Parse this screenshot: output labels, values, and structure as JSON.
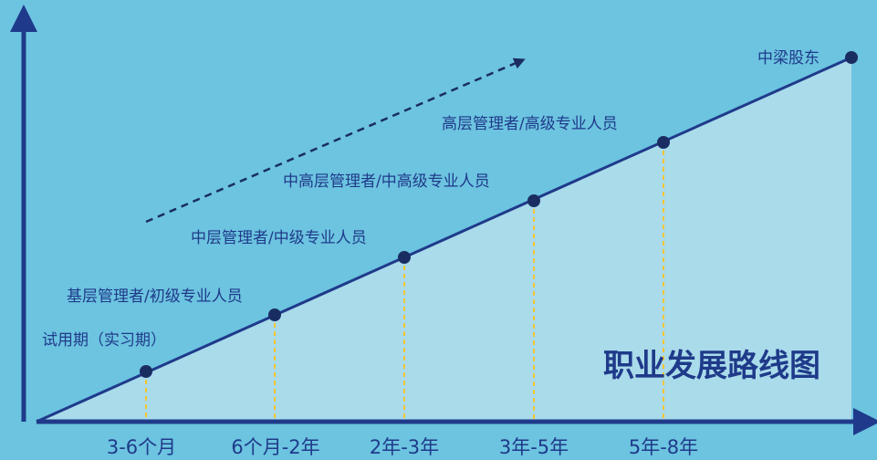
{
  "title": "职业发展路线图",
  "x_labels": [
    "3-6个月",
    "6个月-2年",
    "2年-3年",
    "3年-5年",
    "5年-8年"
  ],
  "stages": [
    {
      "label": "试用期（实习期）",
      "time_index": 0
    },
    {
      "label": "基层管理者/初级专业人员",
      "time_index": 1
    },
    {
      "label": "中层管理者/中级专业人员",
      "time_index": 2
    },
    {
      "label": "中高层管理者/中高级专业人员",
      "time_index": 3
    },
    {
      "label": "高层管理者/高级专业人员",
      "time_index": 4
    },
    {
      "label": "中梁股东",
      "time_index": null
    }
  ],
  "colors": {
    "background": "#6cc4e0",
    "fill": "#a9dbea",
    "line": "#1f3a8a",
    "dot": "#1a2d63",
    "guide": "#f4c531",
    "axis": "#1f3a8a",
    "title": "#1f3a8a",
    "text": "#1f3a8a"
  }
}
